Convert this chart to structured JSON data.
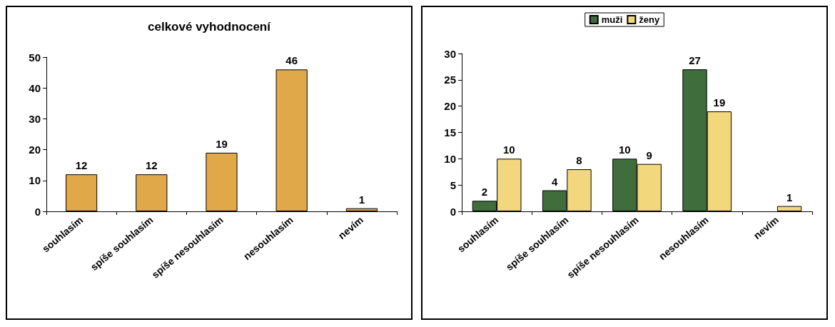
{
  "chart_data": [
    {
      "type": "bar",
      "title": "celkové vyhodnocení",
      "categories": [
        "souhlasím",
        "spíše souhlasím",
        "spíše nesouhlasím",
        "nesouhlasím",
        "nevím"
      ],
      "values": [
        12,
        12,
        19,
        46,
        1
      ],
      "color": "#e0a848",
      "ylim": [
        0,
        50
      ],
      "yticks": [
        0,
        10,
        20,
        30,
        40,
        50
      ],
      "data_labels": true
    },
    {
      "type": "bar",
      "categories": [
        "souhlasím",
        "spíše souhlasím",
        "spíše nesouhlasím",
        "nesouhlasím",
        "nevím"
      ],
      "series": [
        {
          "name": "muži",
          "color": "#3f6e3c",
          "values": [
            2,
            4,
            10,
            27,
            null
          ]
        },
        {
          "name": "ženy",
          "color": "#f3d77c",
          "values": [
            10,
            8,
            9,
            19,
            1
          ]
        }
      ],
      "ylim": [
        0,
        30
      ],
      "yticks": [
        0,
        5,
        10,
        15,
        20,
        25,
        30
      ],
      "data_labels": true,
      "legend": "top"
    }
  ]
}
